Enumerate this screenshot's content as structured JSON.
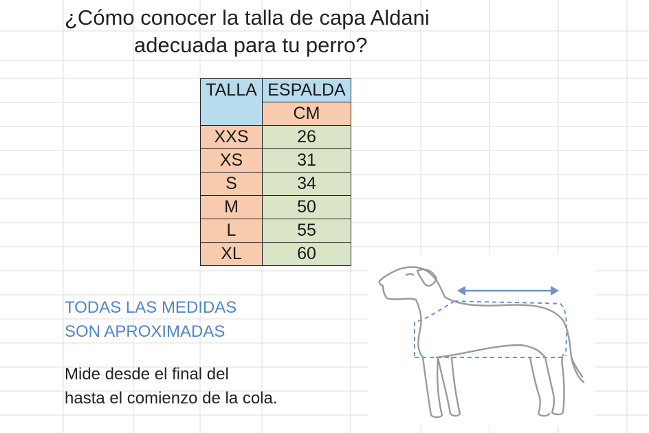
{
  "title": {
    "line1": "¿Cómo conocer la talla de capa Aldani",
    "line2": "adecuada para tu perro?"
  },
  "table": {
    "header_talla": "TALLA",
    "header_espalda": "ESPALDA",
    "unit": "CM",
    "rows": [
      {
        "talla": "XXS",
        "espalda": "26"
      },
      {
        "talla": "XS",
        "espalda": "31"
      },
      {
        "talla": "S",
        "espalda": "34"
      },
      {
        "talla": "M",
        "espalda": "50"
      },
      {
        "talla": "L",
        "espalda": "55"
      },
      {
        "talla": "XL",
        "espalda": "60"
      }
    ]
  },
  "note": {
    "line1": "TODAS LAS MEDIDAS",
    "line2": "SON APROXIMADAS"
  },
  "instructions": {
    "line1": "Mide desde el final del",
    "line2": "hasta el comienzo de la cola."
  },
  "colors": {
    "header_blue": "#b7dced",
    "peach": "#f9cbae",
    "green": "#d9e5c6",
    "note_blue": "#4f86c6",
    "measure_line": "#6b94c8"
  },
  "illustration": {
    "icon": "dog-measurement-icon"
  }
}
